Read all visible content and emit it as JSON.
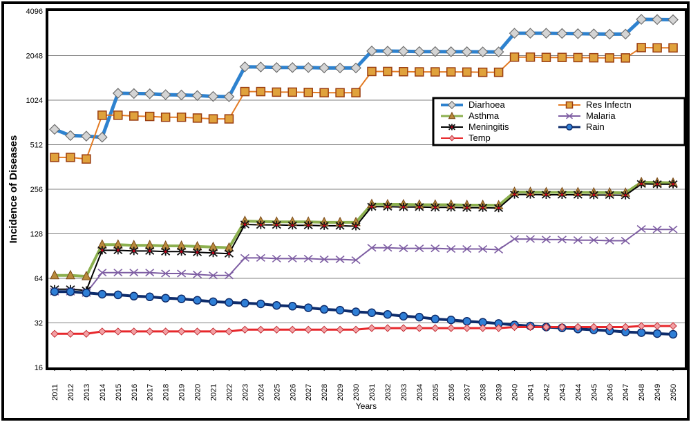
{
  "chart_data": {
    "type": "line",
    "title": "",
    "xlabel": "Years",
    "ylabel": "Incidence of Diseases",
    "yscale": "log2",
    "ylim": [
      16,
      4096
    ],
    "y_ticks": [
      "16",
      "32",
      "64",
      "128",
      "256",
      "512",
      "1024",
      "2048",
      "4096"
    ],
    "grid": true,
    "legend_position": "top-right",
    "categories": [
      "2011",
      "2012",
      "2013",
      "2014",
      "2015",
      "2016",
      "2017",
      "2018",
      "2019",
      "2020",
      "2021",
      "2022",
      "2023",
      "2024",
      "2025",
      "2026",
      "2027",
      "2028",
      "2029",
      "2030",
      "2031",
      "2032",
      "2033",
      "2034",
      "2035",
      "2036",
      "2037",
      "2038",
      "2039",
      "2040",
      "2041",
      "2042",
      "2043",
      "2044",
      "2045",
      "2046",
      "2047",
      "2048",
      "2049",
      "2050"
    ],
    "series": [
      {
        "name": "Diarhoea",
        "color": "#2E82CF",
        "marker": "diamond-silver",
        "width": 5,
        "values": [
          650,
          590,
          585,
          575,
          1140,
          1135,
          1130,
          1115,
          1110,
          1100,
          1085,
          1080,
          1720,
          1715,
          1700,
          1700,
          1700,
          1690,
          1690,
          1690,
          2200,
          2195,
          2190,
          2180,
          2180,
          2175,
          2175,
          2170,
          2170,
          2900,
          2900,
          2900,
          2890,
          2880,
          2870,
          2860,
          2860,
          3600,
          3590,
          3580
        ]
      },
      {
        "name": "Res Infectn",
        "color": "#E37B24",
        "marker": "square-orange",
        "width": 2,
        "values": [
          420,
          420,
          410,
          810,
          810,
          800,
          795,
          785,
          785,
          775,
          765,
          765,
          1170,
          1170,
          1160,
          1160,
          1155,
          1150,
          1150,
          1150,
          1600,
          1600,
          1595,
          1590,
          1590,
          1590,
          1585,
          1580,
          1580,
          2000,
          2000,
          1990,
          1990,
          1985,
          1980,
          1975,
          1975,
          2320,
          2310,
          2310
        ]
      },
      {
        "name": "Asthma",
        "color": "#8CB04F",
        "marker": "triangle-brown",
        "width": 4,
        "values": [
          67,
          67,
          66,
          108,
          108,
          107,
          107,
          106,
          106,
          105,
          104,
          103,
          156,
          155,
          154,
          154,
          154,
          153,
          153,
          153,
          203,
          202,
          202,
          201,
          201,
          201,
          200,
          200,
          199,
          245,
          245,
          244,
          244,
          244,
          243,
          243,
          242,
          285,
          284,
          283
        ]
      },
      {
        "name": "Malaria",
        "color": "#7E5EA3",
        "marker": "x",
        "width": 2,
        "values": [
          52,
          52,
          51,
          70,
          70,
          70,
          70,
          69,
          69,
          68,
          67,
          67,
          88,
          88,
          87,
          87,
          87,
          86,
          86,
          85,
          103,
          103,
          102,
          102,
          102,
          101,
          101,
          101,
          100,
          118,
          118,
          117,
          117,
          116,
          116,
          115,
          115,
          138,
          137,
          137
        ]
      },
      {
        "name": "Meningitis",
        "color": "#000000",
        "marker": "star-red",
        "width": 2,
        "values": [
          54,
          54,
          53,
          99,
          99,
          98,
          98,
          97,
          97,
          96,
          95,
          94,
          148,
          147,
          147,
          146,
          146,
          145,
          145,
          144,
          195,
          195,
          194,
          194,
          193,
          193,
          192,
          192,
          191,
          236,
          236,
          235,
          235,
          235,
          234,
          234,
          233,
          278,
          277,
          277
        ]
      },
      {
        "name": "Rain",
        "color": "#0E2C6B",
        "marker": "circle-blue",
        "width": 4,
        "values": [
          52,
          52,
          51,
          50,
          49.5,
          48.5,
          48,
          47,
          46.5,
          45.5,
          44.5,
          44,
          43.5,
          43,
          42,
          41.5,
          40.5,
          39.5,
          39,
          38,
          37.5,
          36.5,
          35.5,
          35,
          34,
          33.5,
          32.8,
          32.3,
          31.7,
          31,
          30.5,
          30,
          29.6,
          29.1,
          28.7,
          28.3,
          27.8,
          27.5,
          27.1,
          26.8
        ]
      },
      {
        "name": "Temp",
        "color": "#E8272B",
        "marker": "diamond-pink",
        "width": 3,
        "values": [
          27,
          27,
          27,
          28,
          28,
          28,
          28,
          28,
          28,
          28,
          28,
          28,
          28.8,
          28.8,
          28.8,
          28.8,
          28.8,
          28.8,
          28.8,
          28.8,
          29.5,
          29.5,
          29.5,
          29.5,
          29.5,
          29.5,
          29.5,
          29.5,
          29.5,
          30,
          30,
          30,
          30,
          30,
          30,
          30,
          30,
          30.5,
          30.5,
          30.5
        ]
      }
    ]
  }
}
